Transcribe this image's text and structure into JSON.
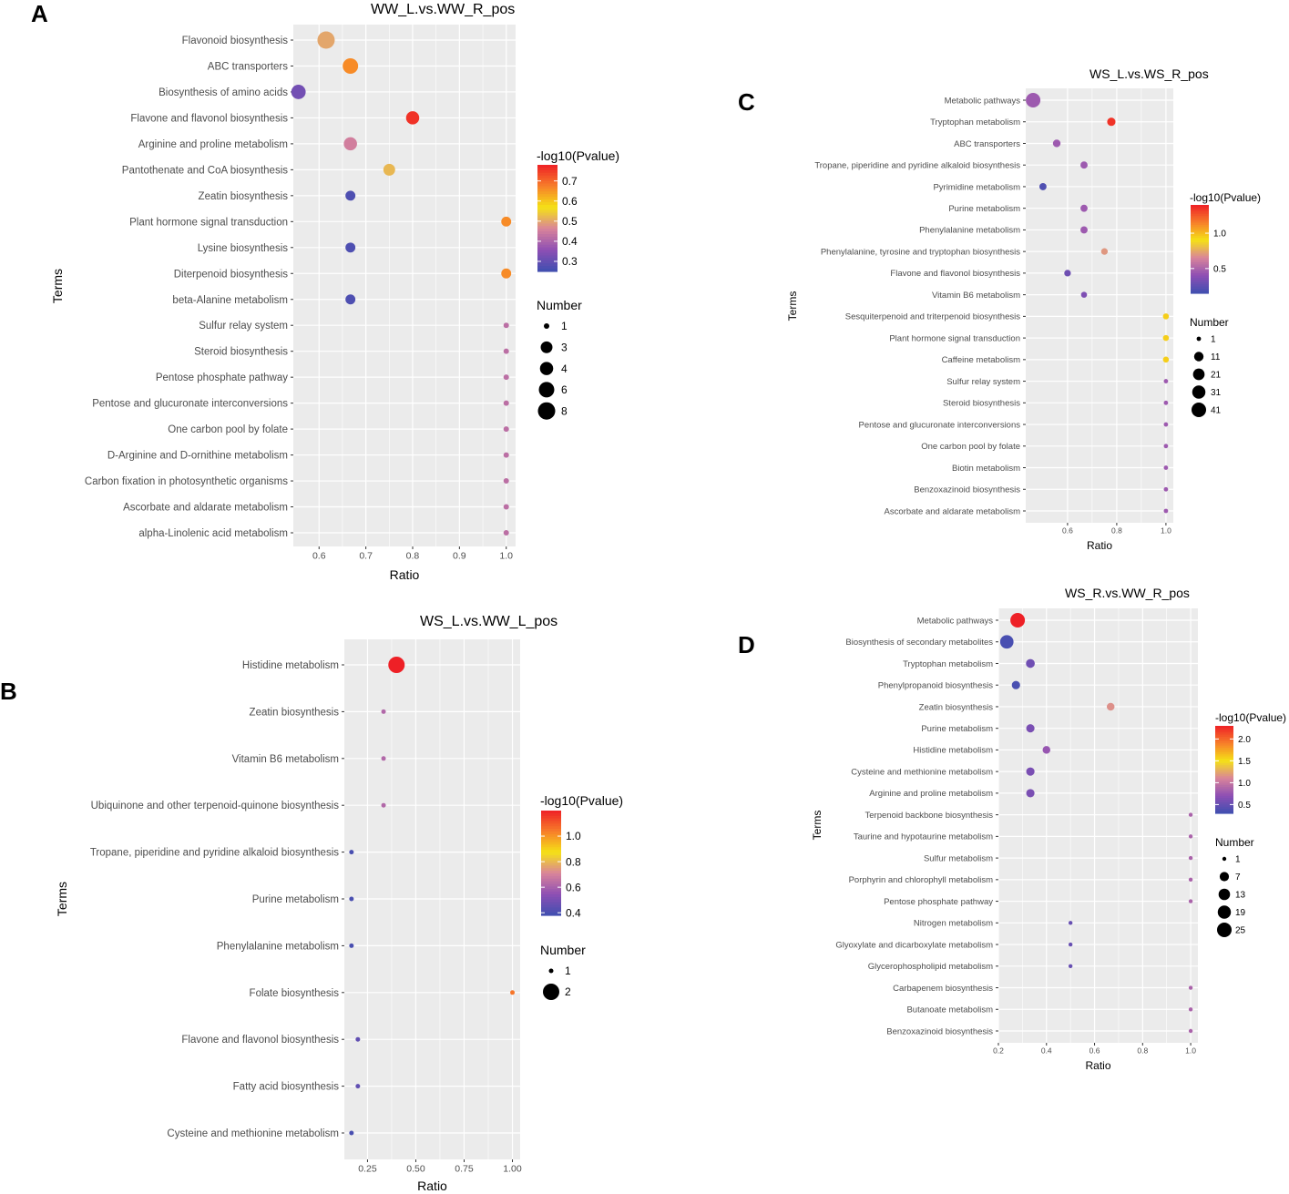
{
  "colors": {
    "low": "#3f4fb0",
    "mid1": "#8e4fb4",
    "mid2": "#d9849a",
    "mid3": "#f5e216",
    "mid4": "#f77e2a",
    "high": "#ee2026",
    "panel_bg": "#ebebeb",
    "grid": "#ffffff"
  },
  "chart_data": [
    {
      "panel": "A",
      "type": "scatter",
      "title": "WW_L.vs.WW_R_pos",
      "xlabel": "Ratio",
      "ylabel": "Terms",
      "xlim": [
        0.545,
        1.02
      ],
      "xticks": [
        0.6,
        0.7,
        0.8,
        0.9,
        1.0
      ],
      "xtick_labels": [
        "0.6",
        "0.7",
        "0.8",
        "0.9",
        "1.0"
      ],
      "color_legend": {
        "title": "-log10(Pvalue)",
        "range": [
          0.25,
          0.78
        ],
        "ticks": [
          0.3,
          0.4,
          0.5,
          0.6,
          0.7
        ],
        "tick_labels": [
          "0.3",
          "0.4",
          "0.5",
          "0.6",
          "0.7"
        ]
      },
      "size_legend": {
        "title": "Number",
        "values": [
          1,
          3,
          4,
          6,
          8
        ],
        "labels": [
          "1",
          "3",
          "4",
          "6",
          "8"
        ]
      },
      "terms": [
        "Flavonoid biosynthesis",
        "ABC transporters",
        "Biosynthesis of amino acids",
        "Flavone and flavonol biosynthesis",
        "Arginine and proline metabolism",
        "Pantothenate and CoA biosynthesis",
        "Zeatin biosynthesis",
        "Plant hormone signal transduction",
        "Lysine biosynthesis",
        "Diterpenoid biosynthesis",
        "beta-Alanine metabolism",
        "Sulfur relay system",
        "Steroid biosynthesis",
        "Pentose phosphate pathway",
        "Pentose and glucuronate interconversions",
        "One carbon pool by folate",
        "D-Arginine and D-ornithine metabolism",
        "Carbon fixation in photosynthetic organisms",
        "Ascorbate and aldarate metabolism",
        "alpha-Linolenic acid metabolism"
      ],
      "ratio": [
        0.615,
        0.667,
        0.556,
        0.8,
        0.667,
        0.75,
        0.667,
        1.0,
        0.667,
        1.0,
        0.667,
        1.0,
        1.0,
        1.0,
        1.0,
        1.0,
        1.0,
        1.0,
        1.0,
        1.0
      ],
      "neglog10p": [
        0.5,
        0.66,
        0.32,
        0.76,
        0.45,
        0.52,
        0.27,
        0.66,
        0.27,
        0.66,
        0.27,
        0.42,
        0.42,
        0.42,
        0.42,
        0.42,
        0.42,
        0.42,
        0.42,
        0.42
      ],
      "number": [
        8,
        6,
        5,
        4,
        4,
        3,
        2,
        2,
        2,
        2,
        2,
        1,
        1,
        1,
        1,
        1,
        1,
        1,
        1,
        1
      ]
    },
    {
      "panel": "B",
      "type": "scatter",
      "title": "WS_L.vs.WW_L_pos",
      "xlabel": "Ratio",
      "ylabel": "Terms",
      "xlim": [
        0.13,
        1.04
      ],
      "xticks": [
        0.25,
        0.5,
        0.75,
        1.0
      ],
      "xtick_labels": [
        "0.25",
        "0.50",
        "0.75",
        "1.00"
      ],
      "color_legend": {
        "title": "-log10(Pvalue)",
        "range": [
          0.38,
          1.2
        ],
        "ticks": [
          0.4,
          0.6,
          0.8,
          1.0
        ],
        "tick_labels": [
          "0.4",
          "0.6",
          "0.8",
          "1.0"
        ]
      },
      "size_legend": {
        "title": "Number",
        "values": [
          1,
          2
        ],
        "labels": [
          "1",
          "2"
        ]
      },
      "terms": [
        "Histidine metabolism",
        "Zeatin biosynthesis",
        "Vitamin B6 metabolism",
        "Ubiquinone and other terpenoid-quinone biosynthesis",
        "Tropane, piperidine and pyridine alkaloid biosynthesis",
        "Purine metabolism",
        "Phenylalanine metabolism",
        "Folate biosynthesis",
        "Flavone and flavonol biosynthesis",
        "Fatty acid biosynthesis",
        "Cysteine and methionine metabolism"
      ],
      "ratio": [
        0.4,
        0.333,
        0.333,
        0.333,
        0.167,
        0.167,
        0.167,
        1.0,
        0.2,
        0.2,
        0.167
      ],
      "neglog10p": [
        1.2,
        0.62,
        0.62,
        0.62,
        0.4,
        0.4,
        0.4,
        1.05,
        0.45,
        0.45,
        0.4
      ],
      "number": [
        2,
        1,
        1,
        1,
        1,
        1,
        1,
        1,
        1,
        1,
        1
      ]
    },
    {
      "panel": "C",
      "type": "scatter",
      "title": "WS_L.vs.WS_R_pos",
      "xlabel": "Ratio",
      "ylabel": "Terms",
      "xlim": [
        0.43,
        1.03
      ],
      "xticks": [
        0.6,
        0.8,
        1.0
      ],
      "xtick_labels": [
        "0.6",
        "0.8",
        "1.0"
      ],
      "color_legend": {
        "title": "-log10(Pvalue)",
        "range": [
          0.15,
          1.4
        ],
        "ticks": [
          0.5,
          1.0
        ],
        "tick_labels": [
          "0.5",
          "1.0"
        ]
      },
      "size_legend": {
        "title": "Number",
        "values": [
          1,
          11,
          21,
          31,
          41
        ],
        "labels": [
          "1",
          "11",
          "21",
          "31",
          "41"
        ]
      },
      "terms": [
        "Metabolic pathways",
        "Tryptophan metabolism",
        "ABC transporters",
        "Tropane, piperidine and pyridine alkaloid biosynthesis",
        "Pyrimidine metabolism",
        "Purine metabolism",
        "Phenylalanine metabolism",
        "Phenylalanine, tyrosine and tryptophan biosynthesis",
        "Flavone and flavonol biosynthesis",
        "Vitamin B6 metabolism",
        "Sesquiterpenoid and triterpenoid biosynthesis",
        "Plant hormone signal transduction",
        "Caffeine metabolism",
        "Sulfur relay system",
        "Steroid biosynthesis",
        "Pentose and glucuronate interconversions",
        "One carbon pool by folate",
        "Biotin metabolism",
        "Benzoxazinoid biosynthesis",
        "Ascorbate and aldarate metabolism"
      ],
      "ratio": [
        0.46,
        0.778,
        0.556,
        0.667,
        0.5,
        0.667,
        0.667,
        0.75,
        0.6,
        0.667,
        1.0,
        1.0,
        1.0,
        1.0,
        1.0,
        1.0,
        1.0,
        1.0,
        1.0,
        1.0
      ],
      "neglog10p": [
        0.45,
        1.35,
        0.45,
        0.45,
        0.2,
        0.45,
        0.45,
        0.7,
        0.3,
        0.35,
        0.95,
        0.95,
        0.95,
        0.45,
        0.45,
        0.45,
        0.45,
        0.45,
        0.45,
        0.45
      ],
      "number": [
        41,
        7,
        5,
        4,
        4,
        4,
        4,
        3,
        3,
        2,
        2,
        2,
        2,
        1,
        1,
        1,
        1,
        1,
        1,
        1
      ]
    },
    {
      "panel": "D",
      "type": "scatter",
      "title": "WS_R.vs.WW_R_pos",
      "xlabel": "Ratio",
      "ylabel": "Terms",
      "xlim": [
        0.2,
        1.03
      ],
      "xticks": [
        0.2,
        0.4,
        0.6,
        0.8,
        1.0
      ],
      "xtick_labels": [
        "0.2",
        "0.4",
        "0.6",
        "0.8",
        "1.0"
      ],
      "color_legend": {
        "title": "-log10(Pvalue)",
        "range": [
          0.3,
          2.3
        ],
        "ticks": [
          0.5,
          1.0,
          1.5,
          2.0
        ],
        "tick_labels": [
          "0.5",
          "1.0",
          "1.5",
          "2.0"
        ]
      },
      "size_legend": {
        "title": "Number",
        "values": [
          1,
          7,
          13,
          19,
          25
        ],
        "labels": [
          "1",
          "7",
          "13",
          "19",
          "25"
        ]
      },
      "terms": [
        "Metabolic pathways",
        "Biosynthesis of secondary metabolites",
        "Tryptophan metabolism",
        "Phenylpropanoid biosynthesis",
        "Zeatin biosynthesis",
        "Purine metabolism",
        "Histidine metabolism",
        "Cysteine and methionine metabolism",
        "Arginine and proline metabolism",
        "Terpenoid backbone biosynthesis",
        "Taurine and hypotaurine metabolism",
        "Sulfur metabolism",
        "Porphyrin and chlorophyll metabolism",
        "Pentose phosphate pathway",
        "Nitrogen metabolism",
        "Glyoxylate and dicarboxylate metabolism",
        "Glycerophospholipid metabolism",
        "Carbapenem biosynthesis",
        "Butanoate metabolism",
        "Benzoxazinoid biosynthesis"
      ],
      "ratio": [
        0.28,
        0.235,
        0.333,
        0.273,
        0.667,
        0.333,
        0.4,
        0.333,
        0.333,
        1.0,
        1.0,
        1.0,
        1.0,
        1.0,
        0.5,
        0.5,
        0.5,
        1.0,
        1.0,
        1.0
      ],
      "neglog10p": [
        2.3,
        0.35,
        0.55,
        0.35,
        1.15,
        0.6,
        0.75,
        0.6,
        0.6,
        0.85,
        0.85,
        0.85,
        0.85,
        0.85,
        0.5,
        0.5,
        0.5,
        0.85,
        0.85,
        0.85
      ],
      "number": [
        25,
        20,
        6,
        5,
        4,
        5,
        4,
        5,
        5,
        1,
        1,
        1,
        1,
        1,
        1,
        1,
        1,
        1,
        1,
        1
      ]
    }
  ]
}
